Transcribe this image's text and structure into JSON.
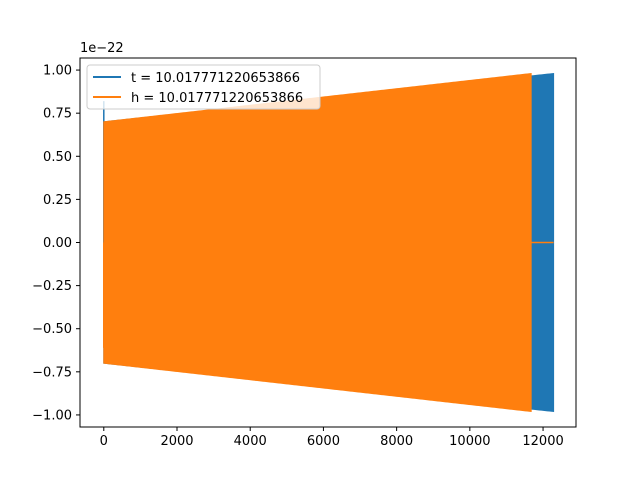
{
  "chart_data": {
    "type": "line",
    "title": "",
    "xlabel": "",
    "ylabel": "",
    "offset_label": "1e−22",
    "xlim": [
      -650,
      12900
    ],
    "ylim": [
      -1.07,
      1.07
    ],
    "x_ticks": [
      0,
      2000,
      4000,
      6000,
      8000,
      10000,
      12000
    ],
    "x_tick_labels": [
      "0",
      "2000",
      "4000",
      "6000",
      "8000",
      "10000",
      "12000"
    ],
    "y_ticks": [
      -1.0,
      -0.75,
      -0.5,
      -0.25,
      0.0,
      0.25,
      0.5,
      0.75,
      1.0
    ],
    "y_tick_labels": [
      "−1.00",
      "−0.75",
      "−0.50",
      "−0.25",
      "0.00",
      "0.25",
      "0.50",
      "0.75",
      "1.00"
    ],
    "grid": false,
    "legend_position": "upper-left",
    "series": [
      {
        "name": "t = 10.017771220653866",
        "color": "#1f77b4",
        "envelope": {
          "x": [
            0,
            12288
          ],
          "amplitude_start": 0.7,
          "amplitude_end": 0.98
        },
        "edge_spikes": [
          [
            0,
            0.82
          ],
          [
            0,
            -0.61
          ]
        ]
      },
      {
        "name": "h = 10.017771220653866",
        "color": "#ff7f0e",
        "envelope": {
          "x": [
            0,
            11675
          ],
          "amplitude_start": 0.7,
          "amplitude_end": 0.98
        },
        "tail": {
          "x": [
            11675,
            12288
          ],
          "y": 0.0
        },
        "edge_spikes": [
          [
            0,
            -0.61
          ]
        ]
      }
    ]
  }
}
